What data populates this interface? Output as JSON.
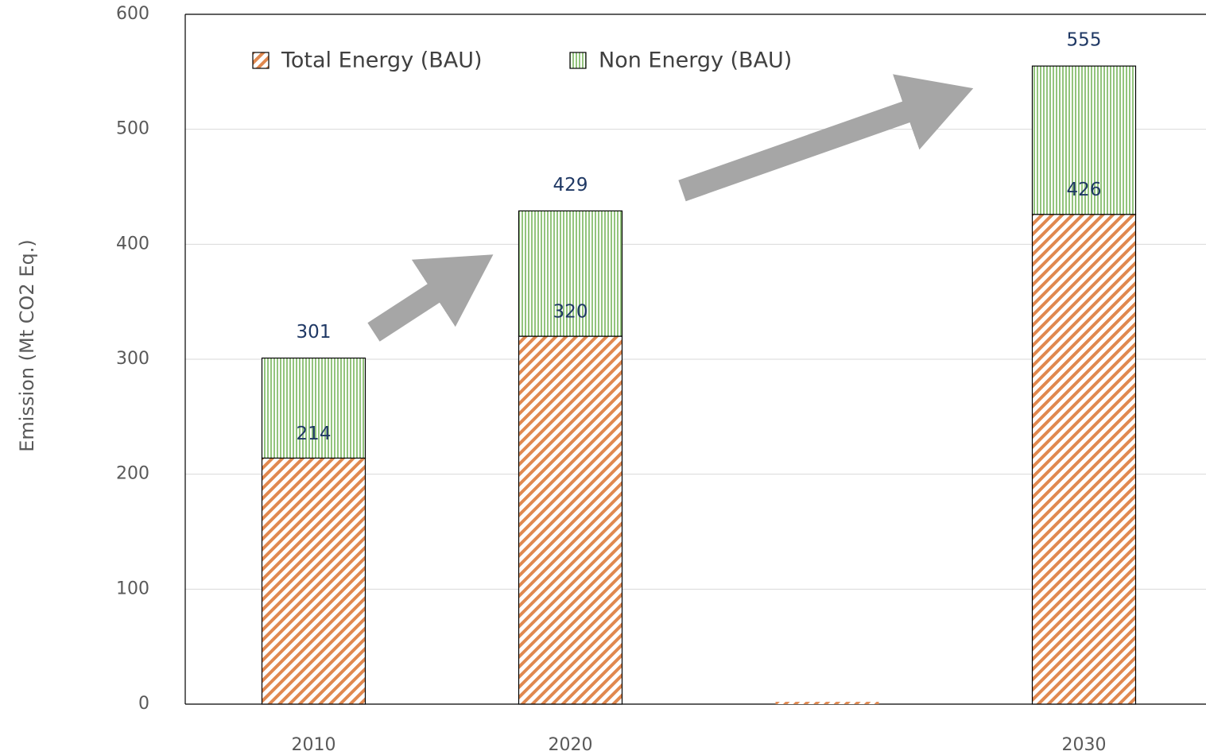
{
  "chart_data": {
    "type": "stacked_bar",
    "y_label": "Emission (Mt CO2 Eq.)",
    "categories": [
      "2010",
      "2020",
      null,
      "2030"
    ],
    "series": [
      {
        "name": "Total Energy (BAU)",
        "color": "#e0884f",
        "pattern": "diagonal",
        "values": [
          214,
          320,
          2,
          426
        ]
      },
      {
        "name": "Non Energy (BAU)",
        "color": "#93c47d",
        "pattern": "vertical",
        "values": [
          87,
          109,
          0,
          129
        ]
      }
    ],
    "segment_labels": [
      "214",
      "320",
      null,
      "426"
    ],
    "total_labels": [
      "301",
      "429",
      null,
      "555"
    ],
    "ylim": [
      0,
      600
    ],
    "yticks": [
      0,
      100,
      200,
      300,
      400,
      500,
      600
    ],
    "grid": true,
    "legend": "top"
  }
}
